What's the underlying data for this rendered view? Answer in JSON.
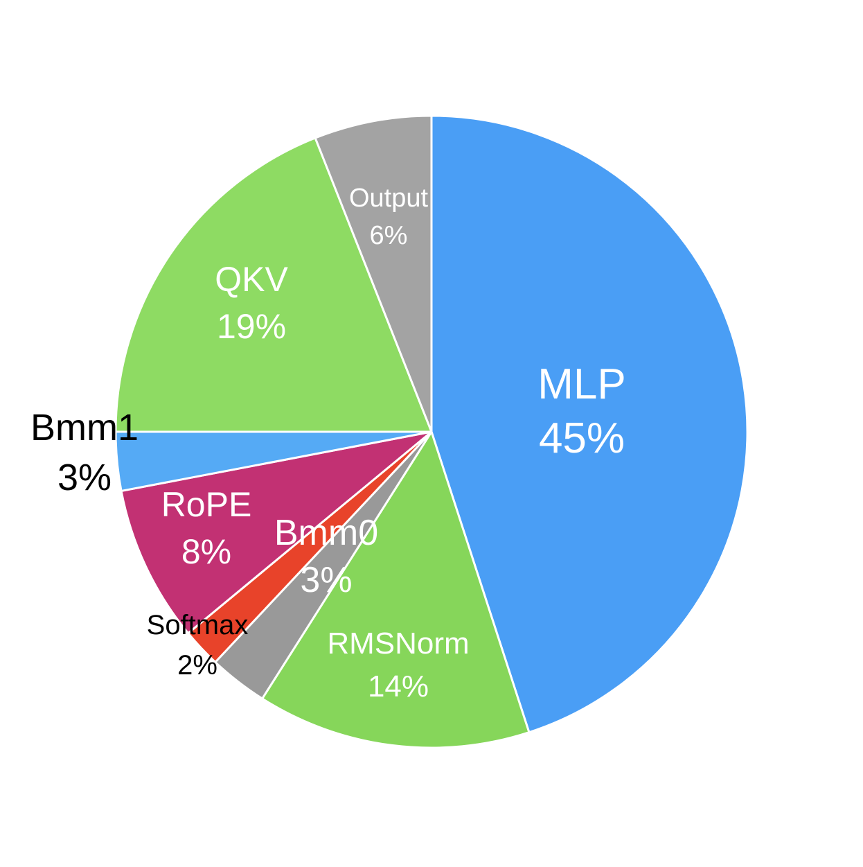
{
  "chart_data": {
    "type": "pie",
    "start_angle_deg": 0,
    "direction": "clockwise",
    "slices": [
      {
        "label": "MLP",
        "value": 45,
        "value_text": "45%",
        "color": "#4A9EF5",
        "text_color": "#ffffff",
        "label_size": "xl"
      },
      {
        "label": "RMSNorm",
        "value": 14,
        "value_text": "14%",
        "color": "#86D65A",
        "text_color": "#ffffff",
        "label_size": "m"
      },
      {
        "label": "",
        "value": 3,
        "value_text": "",
        "color": "#999999",
        "text_color": "#ffffff",
        "label_size": "none"
      },
      {
        "label": "Softmax",
        "value": 2,
        "value_text": "2%",
        "color": "#E8432A",
        "text_color": "#000000",
        "label_size": "s"
      },
      {
        "label": "RoPE",
        "value": 8,
        "value_text": "8%",
        "color": "#C23173",
        "text_color": "#ffffff",
        "label_size": "l"
      },
      {
        "label": "Bmm1",
        "value": 3,
        "value_text": "3%",
        "color": "#55AAF5",
        "text_color": "#000000",
        "label_size": "l"
      },
      {
        "label": "QKV",
        "value": 19,
        "value_text": "19%",
        "color": "#8EDB63",
        "text_color": "#ffffff",
        "label_size": "l"
      },
      {
        "label": "Output",
        "value": 6,
        "value_text": "6%",
        "color": "#A3A3A3",
        "text_color": "#ffffff",
        "label_size": "s"
      }
    ],
    "floating_label": {
      "label": "Bmm0",
      "value_text": "3%",
      "text_color": "#ffffff"
    }
  }
}
